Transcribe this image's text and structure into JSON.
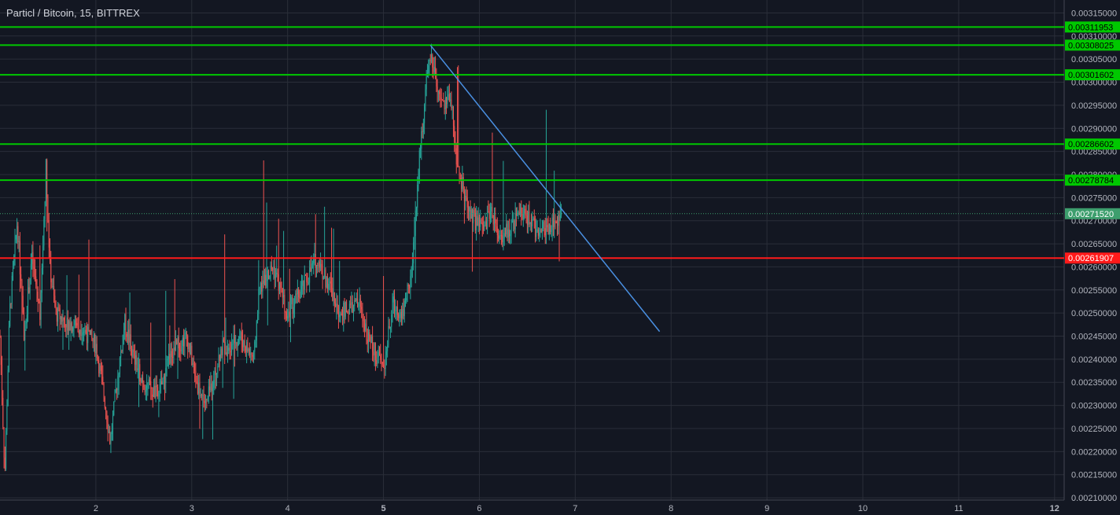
{
  "header": {
    "title": "Particl / Bitcoin, 15, BITTREX"
  },
  "chart_data": {
    "type": "candlestick",
    "symbol": "Particl / Bitcoin",
    "interval": "15",
    "exchange": "BITTREX",
    "colors": {
      "background": "#131722",
      "grid": "#2a2e39",
      "up": "#26a69a",
      "down": "#ef5350",
      "axis_text": "#b2b5be",
      "resistance": "#00c800",
      "support": "#ff1a1a",
      "trendline": "#4a90e2",
      "last_price": "#3d9e6d"
    },
    "x_axis": {
      "ticks": [
        "2",
        "3",
        "4",
        "5",
        "6",
        "7",
        "8",
        "9",
        "10",
        "11",
        "12"
      ],
      "bold_ticks": [
        "5",
        "12"
      ],
      "range": [
        1,
        12
      ]
    },
    "y_axis": {
      "ticks": [
        "0.00315000",
        "0.00310000",
        "0.00305000",
        "0.00300000",
        "0.00295000",
        "0.00290000",
        "0.00285000",
        "0.00280000",
        "0.00275000",
        "0.00270000",
        "0.00265000",
        "0.00260000",
        "0.00255000",
        "0.00250000",
        "0.00245000",
        "0.00240000",
        "0.00235000",
        "0.00230000",
        "0.00225000",
        "0.00220000",
        "0.00215000",
        "0.00210000"
      ],
      "range": [
        0.002095,
        0.003178
      ]
    },
    "horizontal_lines": [
      {
        "price": 0.00311953,
        "label": "0.00311953",
        "kind": "resistance"
      },
      {
        "price": 0.00308025,
        "label": "0.00308025",
        "kind": "resistance"
      },
      {
        "price": 0.00301602,
        "label": "0.00301602",
        "kind": "resistance"
      },
      {
        "price": 0.00286602,
        "label": "0.00286602",
        "kind": "resistance"
      },
      {
        "price": 0.00278784,
        "label": "0.00278784",
        "kind": "resistance"
      },
      {
        "price": 0.00261907,
        "label": "0.00261907",
        "kind": "support"
      }
    ],
    "last_price": {
      "price": 0.0027152,
      "label": "0.00271520"
    },
    "trendline": {
      "start": {
        "day": 5.49,
        "price": 0.00308
      },
      "end": {
        "day": 7.88,
        "price": 0.00246
      }
    },
    "price_path": [
      [
        1.0,
        0.00245
      ],
      [
        1.05,
        0.00215
      ],
      [
        1.1,
        0.0025
      ],
      [
        1.18,
        0.0027
      ],
      [
        1.25,
        0.00245
      ],
      [
        1.33,
        0.00262
      ],
      [
        1.42,
        0.0025
      ],
      [
        1.48,
        0.00282
      ],
      [
        1.52,
        0.0026
      ],
      [
        1.58,
        0.0025
      ],
      [
        1.7,
        0.00248
      ],
      [
        1.85,
        0.00247
      ],
      [
        2.0,
        0.00243
      ],
      [
        2.1,
        0.0023
      ],
      [
        2.15,
        0.00222
      ],
      [
        2.22,
        0.00235
      ],
      [
        2.3,
        0.00248
      ],
      [
        2.4,
        0.0024
      ],
      [
        2.5,
        0.00235
      ],
      [
        2.65,
        0.00232
      ],
      [
        2.8,
        0.00242
      ],
      [
        2.95,
        0.00245
      ],
      [
        3.05,
        0.00235
      ],
      [
        3.15,
        0.0023
      ],
      [
        3.3,
        0.00242
      ],
      [
        3.5,
        0.00245
      ],
      [
        3.65,
        0.0024
      ],
      [
        3.7,
        0.00255
      ],
      [
        3.85,
        0.0026
      ],
      [
        4.0,
        0.0025
      ],
      [
        4.15,
        0.00255
      ],
      [
        4.3,
        0.00262
      ],
      [
        4.45,
        0.00255
      ],
      [
        4.55,
        0.0025
      ],
      [
        4.75,
        0.00252
      ],
      [
        4.85,
        0.00244
      ],
      [
        4.95,
        0.0024
      ],
      [
        5.0,
        0.00238
      ],
      [
        5.1,
        0.00252
      ],
      [
        5.2,
        0.0025
      ],
      [
        5.3,
        0.0026
      ],
      [
        5.38,
        0.00285
      ],
      [
        5.45,
        0.003
      ],
      [
        5.5,
        0.00305
      ],
      [
        5.58,
        0.00296
      ],
      [
        5.65,
        0.00295
      ],
      [
        5.7,
        0.00298
      ],
      [
        5.75,
        0.00285
      ],
      [
        5.85,
        0.00275
      ],
      [
        5.95,
        0.0027
      ],
      [
        6.05,
        0.00268
      ],
      [
        6.12,
        0.00273
      ],
      [
        6.2,
        0.00265
      ],
      [
        6.3,
        0.00268
      ],
      [
        6.45,
        0.00272
      ],
      [
        6.6,
        0.00268
      ],
      [
        6.75,
        0.00269
      ],
      [
        6.85,
        0.00271
      ]
    ]
  }
}
